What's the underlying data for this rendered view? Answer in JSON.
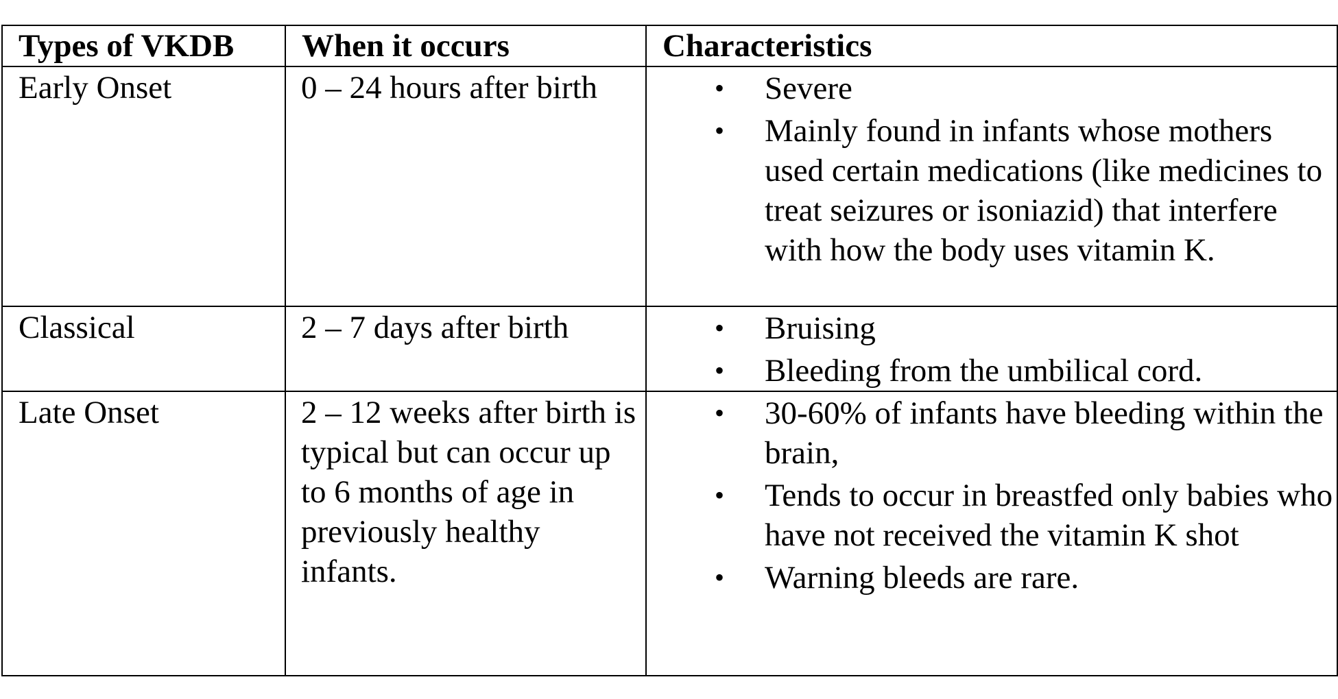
{
  "table": {
    "headers": [
      "Types of VKDB",
      "When it occurs",
      "Characteristics"
    ],
    "rows": [
      {
        "type": "Early Onset",
        "when": "0 – 24 hours after birth",
        "characteristics": [
          "Severe",
          "Mainly found in infants whose mothers used certain medications (like medicines to treat seizures or isoniazid) that interfere with how the body uses vitamin K."
        ]
      },
      {
        "type": "Classical",
        "when": "2 – 7 days after birth",
        "characteristics": [
          "Bruising",
          "Bleeding from the umbilical cord."
        ]
      },
      {
        "type": "Late Onset",
        "when": "2 – 12 weeks after birth is typical but can occur up to 6 months of age in previously healthy infants.",
        "characteristics": [
          "30-60% of infants have bleeding within the brain,",
          "Tends to occur in breastfed only babies who have not received the vitamin K shot",
          "Warning bleeds are rare."
        ]
      }
    ],
    "bullet_glyph": "•"
  }
}
